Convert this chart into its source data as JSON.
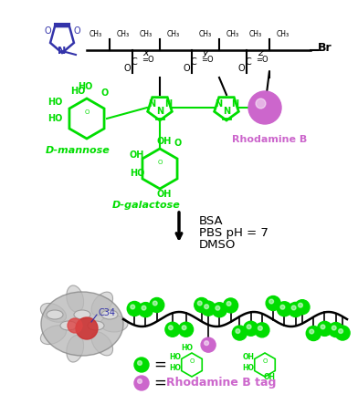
{
  "title": "",
  "background_color": "#ffffff",
  "arrow_color": "#000000",
  "condition_text": [
    "BSA",
    "PBS pH = 7",
    "DMSO"
  ],
  "condition_fontsize": 11,
  "green_color": "#00dd00",
  "green_dark": "#22aa22",
  "purple_color": "#cc66cc",
  "blue_color": "#3333aa",
  "red_color": "#cc2222",
  "gray_color": "#aaaaaa",
  "polymer_color": "#000000",
  "label_d_mannose": "D-mannose",
  "label_d_galactose": "D-galactose",
  "label_rhodamine": "Rhodamine B",
  "label_rhodamine_tag": "Rhodamine B tag",
  "label_c34": "C34",
  "legend_green_text": "=",
  "legend_purple_text": "=   Rhodamine B tag",
  "figsize": [
    3.92,
    4.32
  ],
  "dpi": 100
}
